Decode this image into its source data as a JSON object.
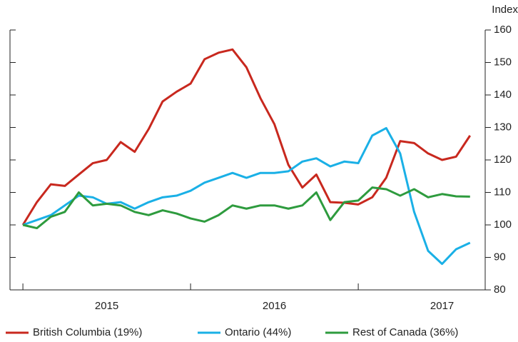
{
  "chart_data": {
    "type": "line",
    "y_axis_label": "Index",
    "x": [
      2015.0,
      2015.0833,
      2015.1667,
      2015.25,
      2015.3333,
      2015.4167,
      2015.5,
      2015.5833,
      2015.6667,
      2015.75,
      2015.8333,
      2015.9167,
      2016.0,
      2016.0833,
      2016.1667,
      2016.25,
      2016.3333,
      2016.4167,
      2016.5,
      2016.5833,
      2016.6667,
      2016.75,
      2016.8333,
      2016.9167,
      2017.0,
      2017.0833,
      2017.1667,
      2017.25,
      2017.3333,
      2017.4167,
      2017.5,
      2017.5833,
      2017.6667
    ],
    "series": [
      {
        "name": "British Columbia (19%)",
        "color": "#c8281e",
        "values": [
          100,
          107,
          112.5,
          112,
          115.5,
          119,
          120,
          125.5,
          122.5,
          129.5,
          138,
          141,
          143.5,
          151,
          153,
          154,
          148.5,
          139,
          131,
          118.5,
          111.5,
          115.5,
          107,
          106.8,
          106.3,
          108.5,
          114.5,
          125.8,
          125.2,
          122,
          120,
          121,
          127.5
        ]
      },
      {
        "name": "Ontario (44%)",
        "color": "#1ab0e6",
        "values": [
          100,
          101.5,
          103,
          106,
          109,
          108.5,
          106.5,
          107,
          105,
          107,
          108.5,
          109,
          110.5,
          113,
          114.5,
          116,
          114.5,
          116,
          116,
          116.5,
          119.5,
          120.5,
          118,
          119.5,
          119,
          127.5,
          129.8,
          122,
          104,
          92,
          88,
          92.5,
          94.5
        ]
      },
      {
        "name": "Rest of Canada (36%)",
        "color": "#2e9b3e",
        "values": [
          100,
          99,
          102.5,
          104,
          110,
          106,
          106.5,
          106,
          104,
          103,
          104.5,
          103.5,
          102,
          101,
          103,
          106,
          105,
          106,
          106,
          105,
          106,
          110,
          101.5,
          107,
          107.5,
          111.5,
          111,
          109,
          111,
          108.5,
          109.5,
          108.8,
          108.7
        ]
      }
    ],
    "xlim": [
      2014.923,
      2017.757
    ],
    "xticks": [
      {
        "value": 2015.5,
        "label": "2015"
      },
      {
        "value": 2016.5,
        "label": "2016"
      },
      {
        "value": 2017.5,
        "label": "2017"
      }
    ],
    "year_boundaries": [
      2015,
      2016,
      2017
    ],
    "ylim": [
      80,
      160
    ],
    "yticks": [
      80,
      90,
      100,
      110,
      120,
      130,
      140,
      150,
      160
    ],
    "y_axis_side": "right",
    "legend": "bottom"
  }
}
